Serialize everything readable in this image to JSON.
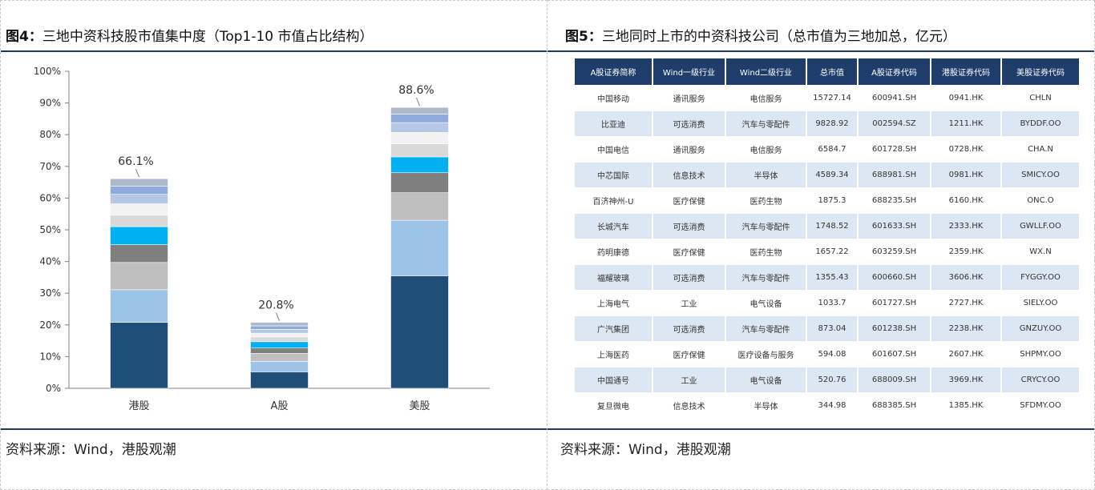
{
  "left": {
    "fig_num": "图4：",
    "fig_title": "三地中资科技股市值集中度（Top1-10 市值占比结构）",
    "source": "资料来源：Wind，港股观潮"
  },
  "right": {
    "fig_num": "图5：",
    "fig_title": "三地同时上市的中资科技公司（总市值为三地加总，亿元）",
    "source": "资料来源：Wind，港股观潮"
  },
  "chart_data": {
    "type": "bar",
    "stacked": true,
    "categories": [
      "港股",
      "A股",
      "美股"
    ],
    "totals": [
      66.1,
      20.8,
      88.6
    ],
    "total_labels": [
      "66.1%",
      "20.8%",
      "88.6%"
    ],
    "segments": [
      [
        20.8,
        10.3,
        8.6,
        5.6,
        5.7,
        3.6,
        3.6,
        3.0,
        2.6,
        2.3
      ],
      [
        5.2,
        3.3,
        2.5,
        1.7,
        2.0,
        1.5,
        1.2,
        1.2,
        1.1,
        1.1
      ],
      [
        35.5,
        17.5,
        8.7,
        6.3,
        5.0,
        4.1,
        3.6,
        3.1,
        2.7,
        2.1
      ]
    ],
    "segment_colors": [
      "#1f4e79",
      "#9dc3e6",
      "#bfbfbf",
      "#7f7f7f",
      "#00b0f0",
      "#d9d9d9",
      "#f2f2f2",
      "#b4c7e7",
      "#8faadc",
      "#adb9ca"
    ],
    "ylim": [
      0,
      100
    ],
    "yticks": [
      0,
      10,
      20,
      30,
      40,
      50,
      60,
      70,
      80,
      90,
      100
    ],
    "ytick_labels": [
      "0%",
      "10%",
      "20%",
      "30%",
      "40%",
      "50%",
      "60%",
      "70%",
      "80%",
      "90%",
      "100%"
    ],
    "grid": false,
    "legend": "none"
  },
  "table": {
    "headers": [
      "A股证券简称",
      "Wind一级行业",
      "Wind二级行业",
      "总市值",
      "A股证券代码",
      "港股证券代码",
      "美股证券代码"
    ],
    "rows": [
      [
        "中国移动",
        "通讯服务",
        "电信服务",
        "15727.14",
        "600941.SH",
        "0941.HK",
        "CHLN"
      ],
      [
        "比亚迪",
        "可选消费",
        "汽车与零配件",
        "9828.92",
        "002594.SZ",
        "1211.HK",
        "BYDDF.OO"
      ],
      [
        "中国电信",
        "通讯服务",
        "电信服务",
        "6584.7",
        "601728.SH",
        "0728.HK",
        "CHA.N"
      ],
      [
        "中芯国际",
        "信息技术",
        "半导体",
        "4589.34",
        "688981.SH",
        "0981.HK",
        "SMICY.OO"
      ],
      [
        "百济神州-U",
        "医疗保健",
        "医药生物",
        "1875.3",
        "688235.SH",
        "6160.HK",
        "ONC.O"
      ],
      [
        "长城汽车",
        "可选消费",
        "汽车与零配件",
        "1748.52",
        "601633.SH",
        "2333.HK",
        "GWLLF.OO"
      ],
      [
        "药明康德",
        "医疗保健",
        "医药生物",
        "1657.22",
        "603259.SH",
        "2359.HK",
        "WX.N"
      ],
      [
        "福耀玻璃",
        "可选消费",
        "汽车与零配件",
        "1355.43",
        "600660.SH",
        "3606.HK",
        "FYGGY.OO"
      ],
      [
        "上海电气",
        "工业",
        "电气设备",
        "1033.7",
        "601727.SH",
        "2727.HK",
        "SIELY.OO"
      ],
      [
        "广汽集团",
        "可选消费",
        "汽车与零配件",
        "873.04",
        "601238.SH",
        "2238.HK",
        "GNZUY.OO"
      ],
      [
        "上海医药",
        "医疗保健",
        "医疗设备与服务",
        "594.08",
        "601607.SH",
        "2607.HK",
        "SHPMY.OO"
      ],
      [
        "中国通号",
        "工业",
        "电气设备",
        "520.76",
        "688009.SH",
        "3969.HK",
        "CRYCY.OO"
      ],
      [
        "复旦微电",
        "信息技术",
        "半导体",
        "344.98",
        "688385.SH",
        "1385.HK",
        "SFDMY.OO"
      ]
    ]
  }
}
